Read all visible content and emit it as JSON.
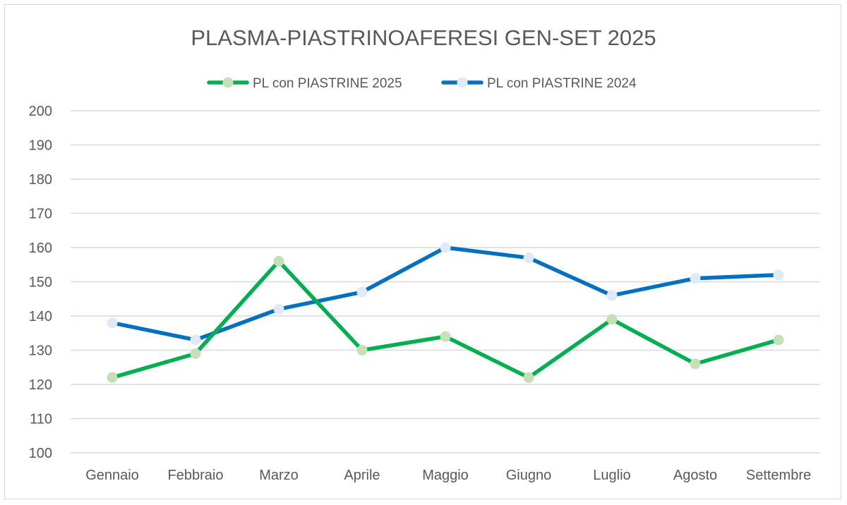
{
  "chart_data": {
    "type": "line",
    "title": "PLASMA-PIASTRINOAFERESI GEN-SET 2025",
    "categories": [
      "Gennaio",
      "Febbraio",
      "Marzo",
      "Aprile",
      "Maggio",
      "Giugno",
      "Luglio",
      "Agosto",
      "Settembre"
    ],
    "series": [
      {
        "name": "PL con PIASTRINE 2025",
        "color": "#00b050",
        "marker_color": "#c5e0b4",
        "values": [
          122,
          129,
          156,
          130,
          134,
          122,
          139,
          126,
          133
        ]
      },
      {
        "name": "PL con PIASTRINE 2024",
        "color": "#0070c0",
        "marker_color": "#deebf7",
        "values": [
          138,
          133,
          142,
          147,
          160,
          157,
          146,
          151,
          152
        ]
      }
    ],
    "ylim": [
      100,
      200
    ],
    "yticks": [
      100,
      110,
      120,
      130,
      140,
      150,
      160,
      170,
      180,
      190,
      200
    ],
    "grid": true,
    "legend": "top"
  }
}
